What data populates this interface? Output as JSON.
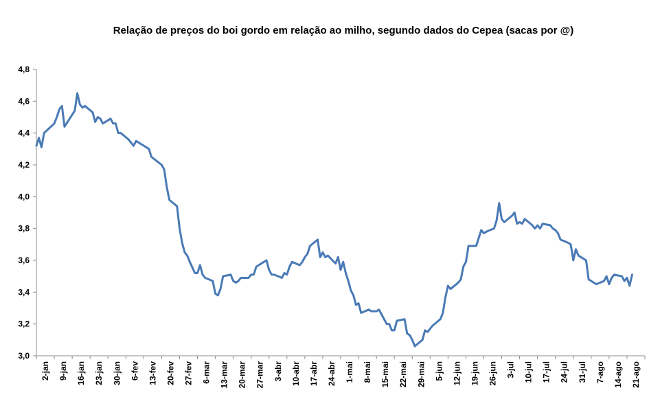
{
  "chart_data": {
    "type": "line",
    "title": "Relação de preços do boi gordo em relação ao milho, segundo dados do Cepea (sacas por @)",
    "xlabel": "",
    "ylabel": "",
    "ylim": [
      3.0,
      4.8
    ],
    "yticks": [
      "3,0",
      "3,2",
      "3,4",
      "3,6",
      "3,8",
      "4,0",
      "4,2",
      "4,4",
      "4,6",
      "4,8"
    ],
    "xticks": [
      "2-jan",
      "9-jan",
      "16-jan",
      "23-jan",
      "30-jan",
      "6-fev",
      "13-fev",
      "20-fev",
      "27-fev",
      "6-mar",
      "13-mar",
      "20-mar",
      "27-mar",
      "3-abr",
      "10-abr",
      "17-abr",
      "24-abr",
      "1-mai",
      "8-mai",
      "15-mai",
      "22-mai",
      "29-mai",
      "5-jun",
      "12-jun",
      "19-jun",
      "26-jun",
      "3-jul",
      "10-jul",
      "17-jul",
      "24-jul",
      "31-jul",
      "7-ago",
      "14-ago",
      "21-ago"
    ],
    "grid": false,
    "legend": "none",
    "line_color": "#4a7ab5",
    "series": [
      {
        "points": [
          [
            0,
            4.32
          ],
          [
            1,
            4.37
          ],
          [
            2,
            4.31
          ],
          [
            3,
            4.4
          ],
          [
            5,
            4.43
          ],
          [
            7,
            4.46
          ],
          [
            8,
            4.5
          ],
          [
            9,
            4.55
          ],
          [
            10,
            4.57
          ],
          [
            11,
            4.44
          ],
          [
            13,
            4.49
          ],
          [
            15,
            4.54
          ],
          [
            16,
            4.65
          ],
          [
            17,
            4.58
          ],
          [
            18,
            4.56
          ],
          [
            19,
            4.57
          ],
          [
            22,
            4.53
          ],
          [
            23,
            4.47
          ],
          [
            24,
            4.5
          ],
          [
            25,
            4.49
          ],
          [
            26,
            4.46
          ],
          [
            29,
            4.49
          ],
          [
            30,
            4.46
          ],
          [
            31,
            4.46
          ],
          [
            32,
            4.4
          ],
          [
            33,
            4.4
          ],
          [
            36,
            4.36
          ],
          [
            38,
            4.32
          ],
          [
            39,
            4.35
          ],
          [
            41,
            4.33
          ],
          [
            44,
            4.3
          ],
          [
            45,
            4.25
          ],
          [
            49,
            4.2
          ],
          [
            50,
            4.17
          ],
          [
            51,
            4.06
          ],
          [
            52,
            3.98
          ],
          [
            55,
            3.94
          ],
          [
            56,
            3.8
          ],
          [
            57,
            3.71
          ],
          [
            58,
            3.65
          ],
          [
            59,
            3.63
          ],
          [
            60,
            3.59
          ],
          [
            62,
            3.52
          ],
          [
            63,
            3.52
          ],
          [
            64,
            3.57
          ],
          [
            65,
            3.51
          ],
          [
            66,
            3.49
          ],
          [
            69,
            3.47
          ],
          [
            70,
            3.39
          ],
          [
            71,
            3.38
          ],
          [
            72,
            3.42
          ],
          [
            73,
            3.5
          ],
          [
            76,
            3.51
          ],
          [
            77,
            3.47
          ],
          [
            78,
            3.46
          ],
          [
            79,
            3.47
          ],
          [
            80,
            3.49
          ],
          [
            82,
            3.49
          ],
          [
            83,
            3.49
          ],
          [
            84,
            3.51
          ],
          [
            85,
            3.51
          ],
          [
            86,
            3.56
          ],
          [
            89,
            3.59
          ],
          [
            90,
            3.6
          ],
          [
            91,
            3.54
          ],
          [
            92,
            3.51
          ],
          [
            93,
            3.51
          ],
          [
            96,
            3.49
          ],
          [
            97,
            3.52
          ],
          [
            98,
            3.51
          ],
          [
            99,
            3.56
          ],
          [
            100,
            3.59
          ],
          [
            103,
            3.57
          ],
          [
            104,
            3.59
          ],
          [
            105,
            3.62
          ],
          [
            106,
            3.64
          ],
          [
            107,
            3.69
          ],
          [
            110,
            3.73
          ],
          [
            111,
            3.62
          ],
          [
            112,
            3.65
          ],
          [
            113,
            3.62
          ],
          [
            114,
            3.63
          ],
          [
            117,
            3.58
          ],
          [
            118,
            3.62
          ],
          [
            119,
            3.54
          ],
          [
            120,
            3.59
          ],
          [
            121,
            3.52
          ],
          [
            122,
            3.47
          ],
          [
            123,
            3.41
          ],
          [
            124,
            3.38
          ],
          [
            125,
            3.32
          ],
          [
            126,
            3.33
          ],
          [
            127,
            3.27
          ],
          [
            130,
            3.29
          ],
          [
            131,
            3.28
          ],
          [
            133,
            3.28
          ],
          [
            134,
            3.29
          ],
          [
            135,
            3.26
          ],
          [
            136,
            3.23
          ],
          [
            137,
            3.2
          ],
          [
            138,
            3.2
          ],
          [
            139,
            3.16
          ],
          [
            140,
            3.16
          ],
          [
            141,
            3.22
          ],
          [
            144,
            3.23
          ],
          [
            145,
            3.14
          ],
          [
            146,
            3.13
          ],
          [
            147,
            3.1
          ],
          [
            148,
            3.06
          ],
          [
            151,
            3.1
          ],
          [
            152,
            3.16
          ],
          [
            153,
            3.15
          ],
          [
            154,
            3.17
          ],
          [
            155,
            3.19
          ],
          [
            158,
            3.23
          ],
          [
            159,
            3.27
          ],
          [
            160,
            3.37
          ],
          [
            161,
            3.44
          ],
          [
            162,
            3.42
          ],
          [
            165,
            3.46
          ],
          [
            166,
            3.48
          ],
          [
            167,
            3.56
          ],
          [
            168,
            3.59
          ],
          [
            169,
            3.69
          ],
          [
            172,
            3.69
          ],
          [
            173,
            3.74
          ],
          [
            174,
            3.79
          ],
          [
            175,
            3.77
          ],
          [
            176,
            3.78
          ],
          [
            179,
            3.8
          ],
          [
            180,
            3.85
          ],
          [
            181,
            3.96
          ],
          [
            182,
            3.86
          ],
          [
            183,
            3.84
          ],
          [
            186,
            3.88
          ],
          [
            187,
            3.9
          ],
          [
            188,
            3.83
          ],
          [
            189,
            3.84
          ],
          [
            190,
            3.83
          ],
          [
            191,
            3.86
          ],
          [
            194,
            3.82
          ],
          [
            195,
            3.8
          ],
          [
            196,
            3.82
          ],
          [
            197,
            3.8
          ],
          [
            198,
            3.83
          ],
          [
            201,
            3.82
          ],
          [
            202,
            3.8
          ],
          [
            203,
            3.79
          ],
          [
            204,
            3.77
          ],
          [
            205,
            3.73
          ],
          [
            208,
            3.71
          ],
          [
            209,
            3.7
          ],
          [
            210,
            3.6
          ],
          [
            211,
            3.67
          ],
          [
            212,
            3.63
          ],
          [
            215,
            3.6
          ],
          [
            216,
            3.48
          ],
          [
            217,
            3.47
          ],
          [
            218,
            3.46
          ],
          [
            219,
            3.45
          ],
          [
            222,
            3.47
          ],
          [
            223,
            3.5
          ],
          [
            224,
            3.45
          ],
          [
            225,
            3.49
          ],
          [
            226,
            3.51
          ],
          [
            229,
            3.5
          ],
          [
            230,
            3.47
          ],
          [
            231,
            3.49
          ],
          [
            232,
            3.44
          ],
          [
            233,
            3.51
          ]
        ]
      }
    ]
  }
}
